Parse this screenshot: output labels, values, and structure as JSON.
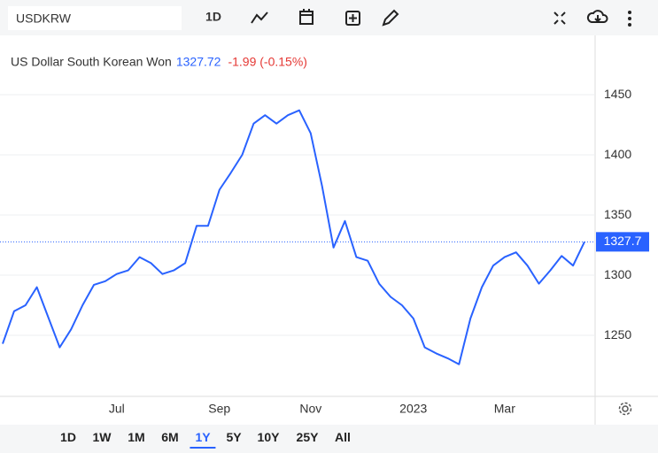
{
  "toolbar": {
    "symbol": "USDKRW",
    "interval": "1D"
  },
  "chart_data": {
    "type": "line",
    "title": "US Dollar South Korean Won",
    "price": 1327.72,
    "change": "-1.99 (-0.15%)",
    "categories": [
      null,
      null,
      null,
      null,
      null,
      null,
      null,
      null,
      null,
      null,
      "Jul",
      null,
      null,
      null,
      null,
      null,
      null,
      null,
      null,
      "Sep",
      null,
      null,
      null,
      null,
      null,
      null,
      null,
      "Nov",
      null,
      null,
      null,
      null,
      null,
      null,
      null,
      null,
      "2023",
      null,
      null,
      null,
      null,
      null,
      null,
      null,
      "Mar",
      null,
      null,
      null,
      null,
      null,
      null,
      null
    ],
    "values": [
      1243,
      1270,
      1275,
      1290,
      1265,
      1240,
      1255,
      1275,
      1292,
      1295,
      1301,
      1304,
      1315,
      1310,
      1301,
      1304,
      1310,
      1341,
      1341,
      1371,
      1385,
      1400,
      1426,
      1433,
      1426,
      1433,
      1437,
      1418,
      1374,
      1323,
      1345,
      1315,
      1312,
      1293,
      1282,
      1275,
      1264,
      1240,
      1235,
      1231,
      1226,
      1264,
      1290,
      1308,
      1315,
      1319,
      1308,
      1293,
      1304,
      1316,
      1308,
      1327.72
    ],
    "color": "#2962ff",
    "ylim": [
      1199.3,
      1499.3
    ],
    "yticks": [
      1250,
      1300,
      1350,
      1400,
      1450
    ],
    "grid": true,
    "price_line": {
      "value": 1327.72,
      "label": "1327.7"
    }
  },
  "ranges": [
    "1D",
    "1W",
    "1M",
    "6M",
    "1Y",
    "5Y",
    "10Y",
    "25Y",
    "All"
  ],
  "active_range": 4
}
